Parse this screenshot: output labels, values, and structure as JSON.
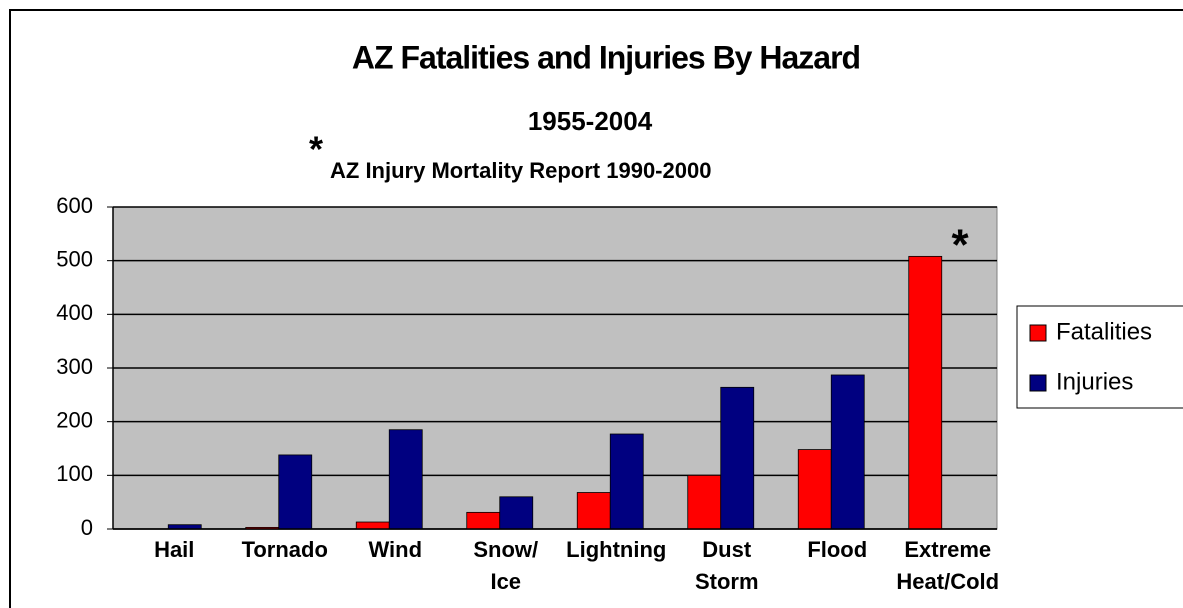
{
  "chart_data": {
    "type": "bar",
    "title": "AZ Fatalities and Injuries By Hazard",
    "subtitle": "1955-2004",
    "note": "AZ Injury Mortality Report 1990-2000",
    "annotations": [
      "*",
      "*"
    ],
    "categories": [
      "Hail",
      "Tornado",
      "Wind",
      "Snow/ Ice",
      "Lightning",
      "Dust Storm",
      "Flood",
      "Extreme Heat/Cold"
    ],
    "series": [
      {
        "name": "Fatalities",
        "color": "#ff0000",
        "values": [
          0,
          3,
          13,
          31,
          68,
          100,
          148,
          508
        ]
      },
      {
        "name": "Injuries",
        "color": "#000080",
        "values": [
          8,
          138,
          185,
          60,
          177,
          264,
          287,
          0
        ]
      }
    ],
    "ylim": [
      0,
      600
    ],
    "yticks": [
      0,
      100,
      200,
      300,
      400,
      500,
      600
    ],
    "grid": true,
    "legend": "right"
  }
}
